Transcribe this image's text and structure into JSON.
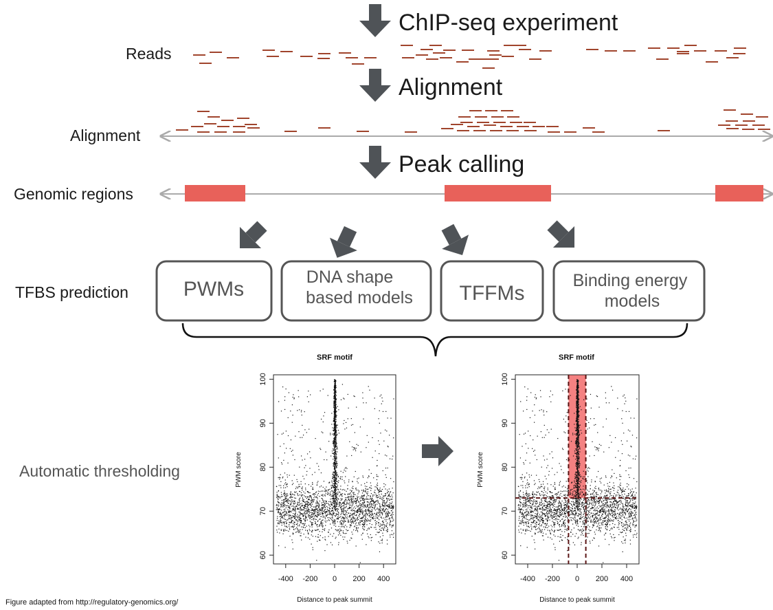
{
  "stages": {
    "chipseq": "ChIP-seq experiment",
    "alignment": "Alignment",
    "peak_calling": "Peak calling"
  },
  "rows": {
    "reads": "Reads",
    "alignment": "Alignment",
    "genomic_regions": "Genomic regions",
    "tfbs_prediction": "TFBS prediction",
    "automatic_thresholding": "Automatic thresholding"
  },
  "models": {
    "pwms": "PWMs",
    "dna_shape_line1": "DNA shape",
    "dna_shape_line2": "based models",
    "tffms": "TFFMs",
    "binding_line1": "Binding energy",
    "binding_line2": "models"
  },
  "colors": {
    "read": "#a0442c",
    "region": "#e8615a",
    "arrow": "#4f5357",
    "axis_line": "#aaaaaa",
    "box_border": "#555555",
    "highlight": "#f26b6b",
    "threshold_line": "#5a1414"
  },
  "chart_data": [
    {
      "type": "scatter",
      "title": "SRF motif",
      "xlabel": "Distance to peak summit",
      "ylabel": "PWM score",
      "xlim": [
        -500,
        500
      ],
      "ylim": [
        58,
        101
      ],
      "x_ticks": [
        "-400",
        "-200",
        "0",
        "200",
        "400"
      ],
      "y_ticks": [
        "60",
        "70",
        "80",
        "90",
        "100"
      ],
      "x_tick_values": [
        -400,
        -200,
        0,
        200,
        400
      ],
      "y_tick_values": [
        60,
        70,
        80,
        90,
        100
      ],
      "background_cloud": {
        "x_range": [
          -480,
          480
        ],
        "y_mean": 70.5,
        "y_sd": 3,
        "n": 2200
      },
      "center_column": {
        "x_center": 0,
        "x_sd": 8,
        "y_range": [
          70,
          100
        ],
        "n": 900
      },
      "sparse_upper": {
        "x_range": [
          -480,
          480
        ],
        "y_range": [
          76,
          99
        ],
        "n": 220
      }
    },
    {
      "type": "scatter",
      "title": "SRF motif",
      "xlabel": "Distance to peak summit",
      "ylabel": "PWM score",
      "xlim": [
        -500,
        500
      ],
      "ylim": [
        58,
        101
      ],
      "x_ticks": [
        "-400",
        "-200",
        "0",
        "200",
        "400"
      ],
      "y_ticks": [
        "60",
        "70",
        "80",
        "90",
        "100"
      ],
      "x_tick_values": [
        -400,
        -200,
        0,
        200,
        400
      ],
      "y_tick_values": [
        60,
        70,
        80,
        90,
        100
      ],
      "background_cloud": {
        "x_range": [
          -480,
          480
        ],
        "y_mean": 70.5,
        "y_sd": 3,
        "n": 2200
      },
      "center_column": {
        "x_center": 0,
        "x_sd": 8,
        "y_range": [
          70,
          100
        ],
        "n": 900
      },
      "sparse_upper": {
        "x_range": [
          -480,
          480
        ],
        "y_range": [
          76,
          99
        ],
        "n": 220
      },
      "threshold": {
        "x_low": -70,
        "x_high": 70,
        "y_low": 73
      }
    }
  ],
  "footer": "Figure adapted from  http://regulatory-genomics.org/"
}
